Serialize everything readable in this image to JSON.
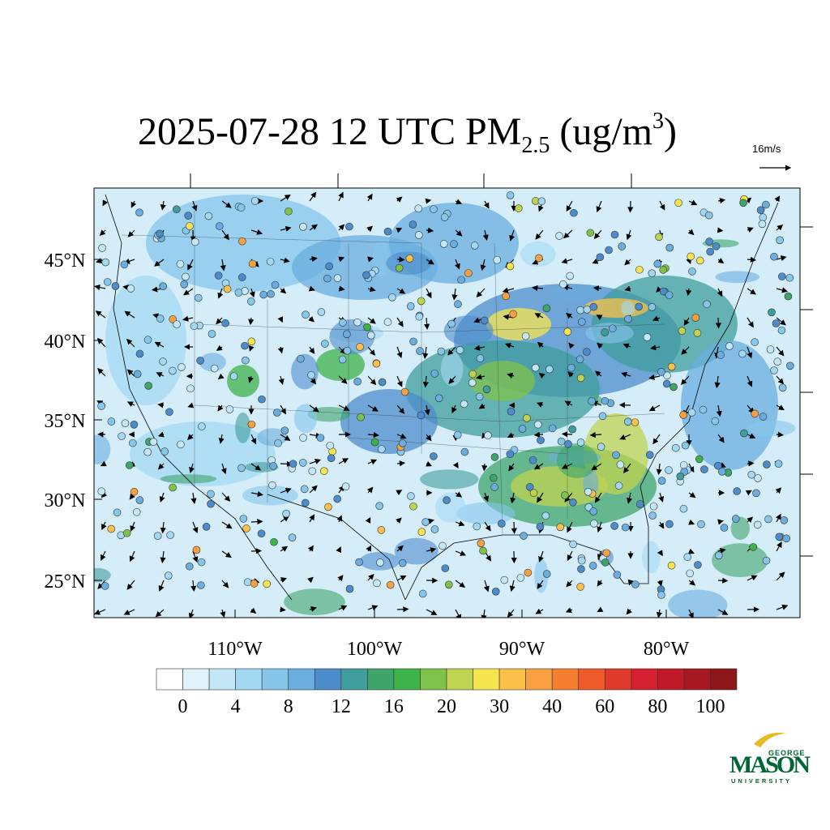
{
  "title": {
    "main": "2025-07-28 12 UTC PM",
    "subscript": "2.5",
    "unit_open": " (ug/m",
    "superscript": "3",
    "unit_close": ")"
  },
  "reference_vector": "16m/s",
  "map": {
    "lat_labels": [
      "45°N",
      "40°N",
      "35°N",
      "30°N",
      "25°N"
    ],
    "lon_labels": [
      "110°W",
      "100°W",
      "90°W",
      "80°W"
    ]
  },
  "colorbar": {
    "colors": [
      "#ffffff",
      "#e0f3fb",
      "#c4e7f7",
      "#a3d8f3",
      "#86c6eb",
      "#6aaddf",
      "#4d8ccb",
      "#3f9d9b",
      "#3fa46a",
      "#3db34a",
      "#7fc24a",
      "#bfd350",
      "#f7e550",
      "#fbc04a",
      "#f8a040",
      "#f57f30",
      "#ee5a2a",
      "#e03a2a",
      "#d42030",
      "#c01a28",
      "#a81820",
      "#8c1618"
    ],
    "ticks": [
      0,
      4,
      8,
      12,
      16,
      20,
      30,
      40,
      60,
      80,
      100
    ]
  },
  "logo": {
    "top": "GEORGE",
    "name": "MASON",
    "bottom": "UNIVERSITY"
  }
}
